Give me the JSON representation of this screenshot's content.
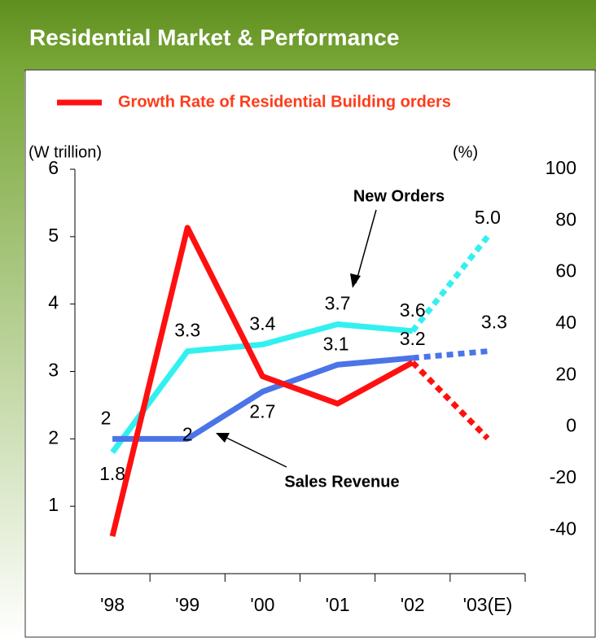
{
  "header": {
    "title": "Residential Market & Performance"
  },
  "chart_data": {
    "type": "line",
    "categories": [
      "'98",
      "'99",
      "'00",
      "'01",
      "'02",
      "'03(E)"
    ],
    "y_label": "(W trillion)",
    "y2_label": "(%)",
    "ylim": [
      0,
      6
    ],
    "yticks": [
      1,
      2,
      3,
      4,
      5,
      6
    ],
    "y2lim": [
      -57,
      100
    ],
    "y2ticks": [
      -40,
      -20,
      0,
      20,
      40,
      60,
      80,
      100
    ],
    "dashed_from": 4,
    "legend": "top",
    "series": [
      {
        "name": "New Orders",
        "color": "#33f0f0",
        "values": [
          1.8,
          3.3,
          3.4,
          3.7,
          3.6,
          5.0
        ],
        "value_labels": [
          "1.8",
          "3.3",
          "3.4",
          "3.7",
          "3.6",
          "5.0"
        ]
      },
      {
        "name": "Sales Revenue",
        "color": "#4a74e8",
        "values": [
          2,
          2,
          2.7,
          3.1,
          3.2,
          3.3
        ]
      },
      {
        "name": "Growth Rate of Residential Building orders",
        "color": "#ff1010",
        "axis": "y2",
        "values": [
          -42.5,
          77.3,
          19.6,
          9,
          25,
          -4.5
        ]
      }
    ]
  }
}
